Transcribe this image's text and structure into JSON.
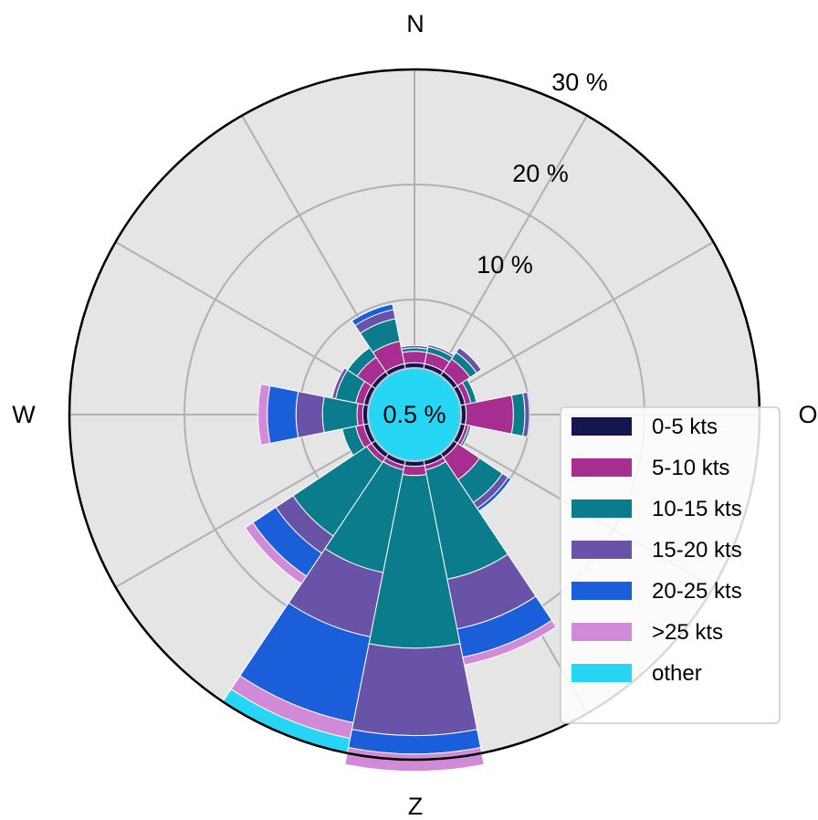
{
  "chart_data": {
    "type": "windrose",
    "directions": [
      "N",
      "O",
      "Z",
      "W"
    ],
    "rings": [
      10,
      20,
      30
    ],
    "ring_labels": [
      "10 %",
      "20 %",
      "30 %"
    ],
    "rmax": 30,
    "calm_label": "0.5 %",
    "calm_radius": 4.05,
    "sector_width_deg": 22.5,
    "grid": true,
    "legend_position": "lower-right",
    "series": [
      {
        "name": "0-5 kts",
        "color": "#16164f"
      },
      {
        "name": "5-10 kts",
        "color": "#a82d91"
      },
      {
        "name": "10-15 kts",
        "color": "#0b7c8c"
      },
      {
        "name": "15-20 kts",
        "color": "#6953a9"
      },
      {
        "name": "20-25 kts",
        "color": "#1a5fd9"
      },
      {
        "name": ">25 kts",
        "color": "#d08ad8"
      },
      {
        "name": "other",
        "color": "#27d6f4"
      }
    ],
    "sectors": [
      {
        "direction_deg": 0,
        "cum": [
          4.5,
          5.5,
          5.8,
          6.0
        ]
      },
      {
        "direction_deg": 22.5,
        "cum": [
          4.5,
          5.5,
          6.0,
          6.2
        ]
      },
      {
        "direction_deg": 45,
        "cum": [
          4.5,
          5.8,
          6.5,
          7.0
        ]
      },
      {
        "direction_deg": 67.5,
        "cum": [
          4.5,
          5.0,
          5.5
        ]
      },
      {
        "direction_deg": 90,
        "cum": [
          4.5,
          8.6,
          9.6,
          10.0
        ]
      },
      {
        "direction_deg": 112.5,
        "cum": [
          4.5,
          4.8,
          5.0
        ]
      },
      {
        "direction_deg": 135,
        "cum": [
          4.5,
          6.8,
          9.2,
          9.8,
          10.1
        ]
      },
      {
        "direction_deg": 157.5,
        "cum": [
          4.5,
          4.9,
          14.6,
          19.0,
          21.5,
          22.2
        ]
      },
      {
        "direction_deg": 180,
        "cum": [
          4.5,
          5.3,
          20.3,
          27.9,
          29.5,
          31.0
        ]
      },
      {
        "direction_deg": 202.5,
        "cum": [
          4.5,
          4.9,
          14.0,
          19.7,
          27.3,
          28.7,
          30.0
        ]
      },
      {
        "direction_deg": 225,
        "cum": [
          4.5,
          5.0,
          12.7,
          14.5,
          16.9,
          17.7
        ]
      },
      {
        "direction_deg": 247.5,
        "cum": [
          4.5,
          5.2,
          6.4
        ]
      },
      {
        "direction_deg": 270,
        "cum": [
          4.5,
          5.0,
          8.0,
          10.3,
          12.8,
          13.6
        ]
      },
      {
        "direction_deg": 292.5,
        "cum": [
          4.5,
          5.2,
          7.0,
          7.3
        ]
      },
      {
        "direction_deg": 315,
        "cum": [
          4.5,
          6.0,
          7.0
        ]
      },
      {
        "direction_deg": 337.5,
        "cum": [
          4.5,
          6.5,
          8.5,
          9.3,
          9.8
        ]
      }
    ]
  }
}
